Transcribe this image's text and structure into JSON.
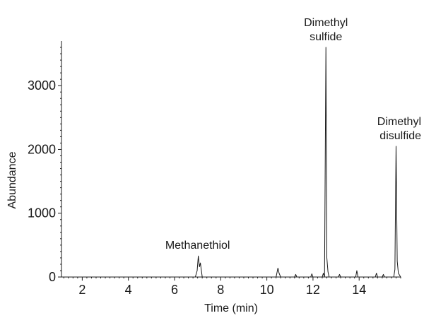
{
  "chart_data": {
    "type": "line",
    "title": "",
    "xlabel": "Time (min)",
    "ylabel": "Abundance",
    "xlim": [
      1.1,
      15.8
    ],
    "ylim": [
      0,
      3700
    ],
    "xticks": [
      2,
      4,
      6,
      8,
      10,
      12,
      14
    ],
    "yticks": [
      0,
      1000,
      2000,
      3000
    ],
    "grid": false,
    "line_color": "#1a1a1a",
    "series": [
      {
        "x": [
          1.1,
          6.9,
          6.98,
          7.03,
          7.08,
          7.12,
          7.2,
          10.4,
          10.48,
          10.53,
          10.6,
          11.2,
          11.25,
          11.3,
          11.9,
          11.95,
          12.0,
          12.4,
          12.45,
          12.5,
          12.56,
          12.6,
          12.65,
          12.7,
          13.1,
          13.15,
          13.2,
          13.85,
          13.9,
          13.95,
          14.7,
          14.75,
          14.8,
          15.0,
          15.05,
          15.1,
          15.5,
          15.55,
          15.6,
          15.65,
          15.7,
          15.8
        ],
        "y": [
          0,
          0,
          100,
          330,
          160,
          220,
          0,
          0,
          140,
          60,
          0,
          0,
          40,
          0,
          0,
          50,
          0,
          0,
          60,
          0,
          3600,
          300,
          80,
          0,
          0,
          40,
          0,
          0,
          100,
          0,
          0,
          60,
          0,
          0,
          40,
          0,
          0,
          120,
          2050,
          250,
          60,
          0
        ]
      }
    ],
    "annotations": [
      {
        "text": "Methanethiol",
        "x": 7.0,
        "y": 330
      },
      {
        "text": "Dimethyl\nsulfide",
        "x": 12.56,
        "y": 3600
      },
      {
        "text": "Dimethyl\ndisulfide",
        "x": 15.6,
        "y": 2050
      }
    ]
  }
}
